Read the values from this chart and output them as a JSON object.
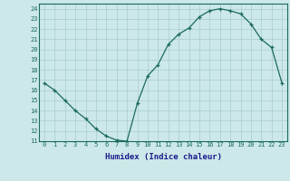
{
  "x": [
    0,
    1,
    2,
    3,
    4,
    5,
    6,
    7,
    8,
    9,
    10,
    11,
    12,
    13,
    14,
    15,
    16,
    17,
    18,
    19,
    20,
    21,
    22,
    23
  ],
  "y": [
    16.7,
    16.0,
    15.0,
    14.0,
    13.2,
    12.2,
    11.5,
    11.1,
    11.0,
    14.7,
    17.4,
    18.5,
    20.5,
    21.5,
    22.1,
    23.2,
    23.8,
    24.0,
    23.8,
    23.5,
    22.5,
    21.0,
    20.2,
    16.7
  ],
  "xlabel": "Humidex (Indice chaleur)",
  "xlim": [
    -0.5,
    23.5
  ],
  "ylim": [
    11,
    24.5
  ],
  "yticks": [
    11,
    12,
    13,
    14,
    15,
    16,
    17,
    18,
    19,
    20,
    21,
    22,
    23,
    24
  ],
  "xticks": [
    0,
    1,
    2,
    3,
    4,
    5,
    6,
    7,
    8,
    9,
    10,
    11,
    12,
    13,
    14,
    15,
    16,
    17,
    18,
    19,
    20,
    21,
    22,
    23
  ],
  "line_color": "#1a6b5a",
  "marker_color": "#1a6b5a",
  "bg_color": "#cce8e8",
  "grid_color": "#aacccc",
  "axis_label_color": "#1a1a8c",
  "tick_color": "#1a6b5a"
}
